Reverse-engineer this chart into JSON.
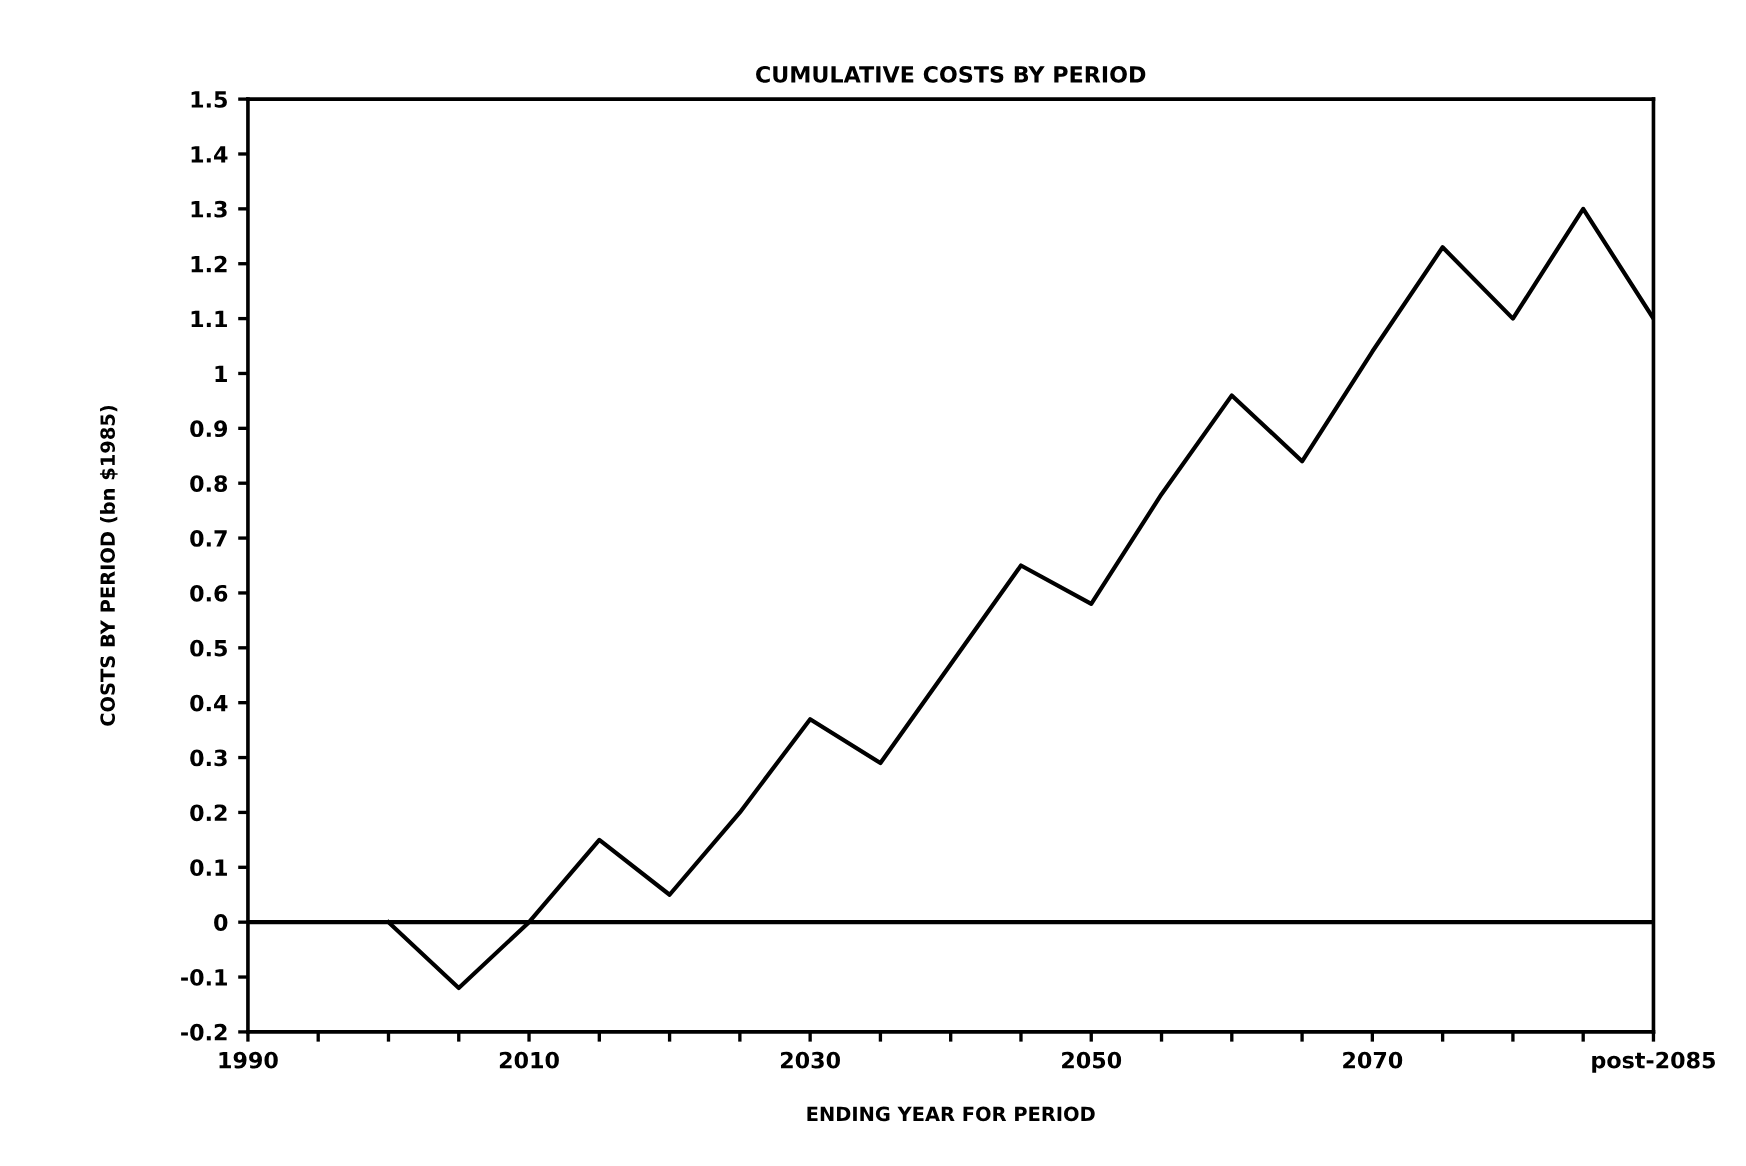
{
  "chart_data": {
    "type": "line",
    "title": "CUMULATIVE COSTS BY PERIOD",
    "xlabel": "ENDING YEAR FOR PERIOD",
    "ylabel": "COSTS BY PERIOD (bn $1985)",
    "x": [
      2000,
      2005,
      2010,
      2015,
      2020,
      2025,
      2030,
      2035,
      2040,
      2045,
      2050,
      2055,
      2060,
      2065,
      2070,
      2075,
      2080,
      2085,
      2090
    ],
    "series": [
      {
        "color": "#000000",
        "values": [
          0,
          -0.12,
          0.0,
          0.15,
          0.05,
          0.2,
          0.37,
          0.29,
          0.47,
          0.65,
          0.58,
          0.78,
          0.96,
          0.84,
          1.04,
          1.23,
          1.1,
          1.3,
          1.1
        ]
      }
    ],
    "xlim": [
      1990,
      2090
    ],
    "xticks": [
      1990,
      {
        "value": 1995,
        "label": null
      },
      {
        "value": 2000,
        "label": null
      },
      {
        "value": 2005,
        "label": null
      },
      2010,
      {
        "value": 2015,
        "label": null
      },
      {
        "value": 2020,
        "label": null
      },
      {
        "value": 2025,
        "label": null
      },
      2030,
      {
        "value": 2035,
        "label": null
      },
      {
        "value": 2040,
        "label": null
      },
      {
        "value": 2045,
        "label": null
      },
      2050,
      {
        "value": 2055,
        "label": null
      },
      {
        "value": 2060,
        "label": null
      },
      {
        "value": 2065,
        "label": null
      },
      2070,
      {
        "value": 2075,
        "label": null
      },
      {
        "value": 2080,
        "label": null
      },
      {
        "value": 2085,
        "label": null
      },
      {
        "value": 2090,
        "label": "post-2085"
      }
    ],
    "ylim": [
      -0.2,
      1.5
    ],
    "yticks": [
      -0.2,
      -0.1,
      0,
      0.1,
      0.2,
      0.3,
      0.4,
      0.5,
      0.6,
      0.7,
      0.8,
      0.9,
      1,
      1.1,
      1.2,
      1.3,
      1.4,
      1.5
    ],
    "ref_lines": [
      {
        "axis": "y",
        "value": 0,
        "color": "#000000"
      }
    ],
    "grid": false,
    "legend": false,
    "marker": "none",
    "line_style": "solid"
  }
}
